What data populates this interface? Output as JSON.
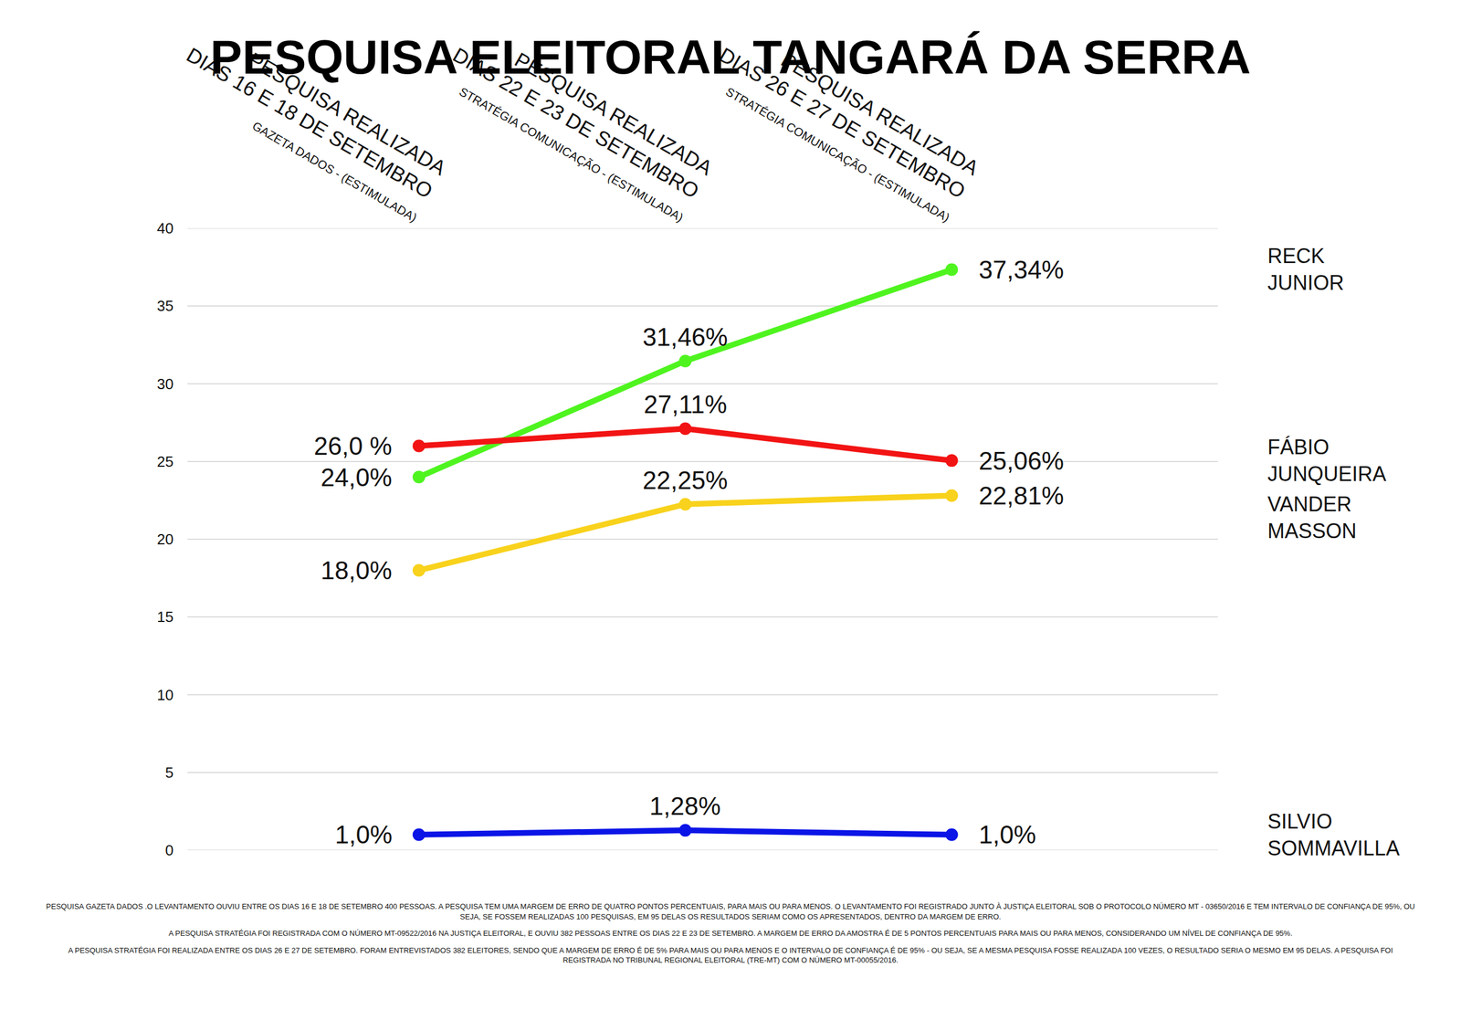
{
  "chart_data": {
    "type": "line",
    "title": "PESQUISA ELEITORAL TANGARÁ DA SERRA",
    "categories": [
      "PESQUISA REALIZADA DIAS 16 E 18 DE SETEMBRO",
      "PESQUISA REALIZADA DIAS 22 E 23 DE SETEMBRO",
      "PESQUISA REALIZADA DIAS 26 E 27 DE SETEMBRO"
    ],
    "category_notes": [
      "GAZETA DADOS - (ESTIMULADA)",
      "STRATÉGIA COMUNICAÇÃO - (ESTIMULADA)",
      "STRATÉGIA COMUNICAÇÃO - (ESTIMULADA)"
    ],
    "series": [
      {
        "name": "RECK JUNIOR",
        "color": "#4ff41f",
        "values": [
          24.0,
          31.46,
          37.34
        ],
        "value_labels": [
          "24,0%",
          "31,46%",
          "37,34%"
        ]
      },
      {
        "name": "FÁBIO JUNQUEIRA",
        "color": "#f21414",
        "values": [
          26.0,
          27.11,
          25.06
        ],
        "value_labels": [
          "26,0 %",
          "27,11%",
          "25,06%"
        ]
      },
      {
        "name": "VANDER MASSON",
        "color": "#f8d21c",
        "values": [
          18.0,
          22.25,
          22.81
        ],
        "value_labels": [
          "18,0%",
          "22,25%",
          "22,81%"
        ]
      },
      {
        "name": "SILVIO SOMMAVILLA",
        "color": "#0a14e6",
        "values": [
          1.0,
          1.28,
          1.0
        ],
        "value_labels": [
          "1,0%",
          "1,28%",
          "1,0%"
        ]
      }
    ],
    "ylim": [
      0,
      40
    ],
    "yticks": [
      0,
      5,
      10,
      15,
      20,
      25,
      30,
      35,
      40
    ],
    "grid": true,
    "data_labels": true,
    "marker": "circle",
    "notes": [
      "PESQUISA GAZETA DADOS .O LEVANTAMENTO OUVIU ENTRE OS DIAS 16 E 18 DE SETEMBRO 400 PESSOAS. A PESQUISA TEM UMA MARGEM DE ERRO DE QUATRO PONTOS PERCENTUAIS, PARA MAIS OU PARA MENOS. O LEVANTAMENTO FOI REGISTRADO JUNTO À JUSTIÇA ELEITORAL SOB O PROTOCOLO NÚMERO MT - 03650/2016 E TEM INTERVALO DE CONFIANÇA DE 95%, OU SEJA, SE FOSSEM REALIZADAS 100 PESQUISAS, EM 95 DELAS OS RESULTADOS SERIAM COMO OS APRESENTADOS, DENTRO DA MARGEM DE ERRO.",
      "A PESQUISA STRATÉGIA FOI REGISTRADA COM O NÚMERO MT-09522/2016 NA JUSTIÇA ELEITORAL, E OUVIU 382 PESSOAS ENTRE OS DIAS 22 E 23 DE SETEMBRO. A MARGEM DE ERRO DA AMOSTRA É DE 5 PONTOS PERCENTUAIS PARA MAIS OU PARA MENOS, CONSIDERANDO UM NÍVEL DE CONFIANÇA DE 95%.",
      "A PESQUISA STRATÉGIA FOI REALIZADA ENTRE OS DIAS 26 E 27 DE SETEMBRO. FORAM ENTREVISTADOS 382 ELEITORES, SENDO QUE A MARGEM DE ERRO É DE 5% PARA MAIS OU PARA MENOS E O INTERVALO DE CONFIANÇA É DE 95% - OU SEJA, SE A MESMA PESQUISA FOSSE REALIZADA 100 VEZES, O RESULTADO SERIA O MESMO EM 95 DELAS. A PESQUISA FOI REGISTRADA NO TRIBUNAL REGIONAL ELEITORAL (TRE-MT) COM O NÚMERO MT-00055/2016."
    ]
  }
}
